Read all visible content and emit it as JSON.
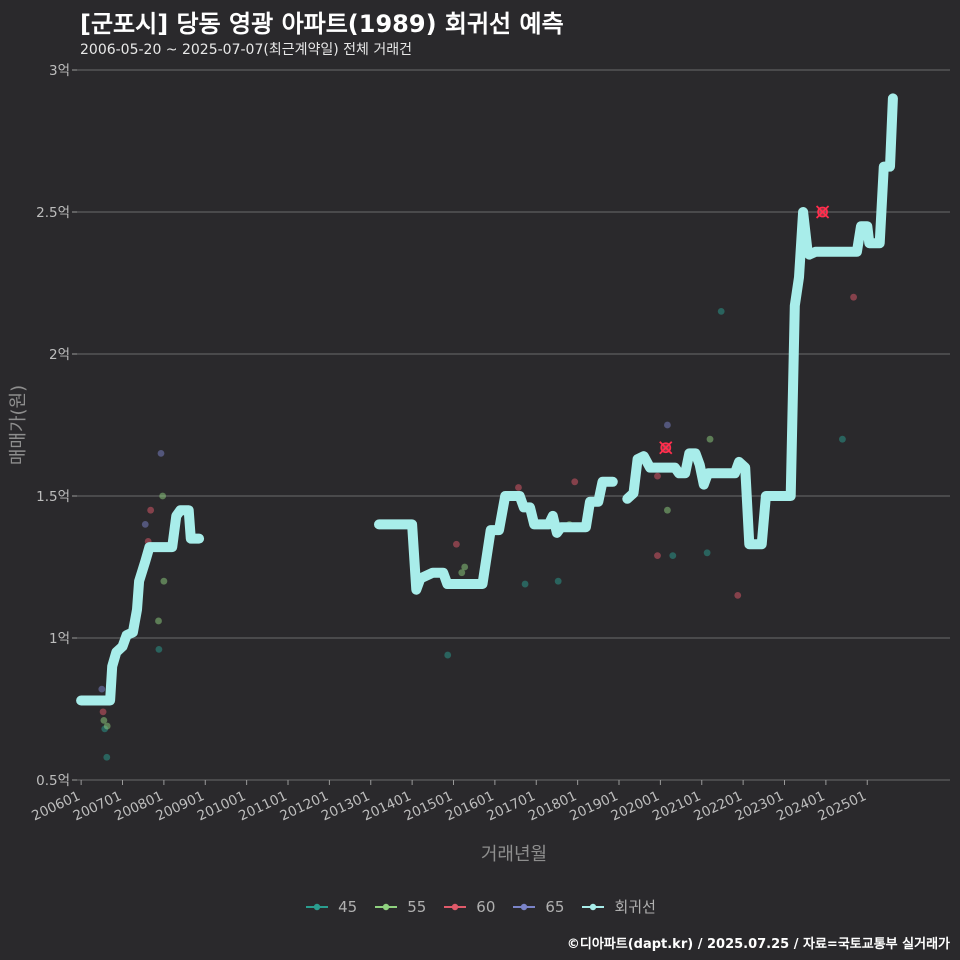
{
  "chart_data": {
    "type": "line",
    "title": "[군포시] 당동 영광 아파트(1989) 회귀선 예측",
    "subtitle": "2006-05-20 ~ 2025-07-07(최근계약일) 전체 거래건",
    "xlabel": "거래년월",
    "ylabel": "매매가(원)",
    "xlim": [
      2005.9,
      2027.0
    ],
    "ylim": [
      0.5,
      3.0
    ],
    "y_ticks": [
      {
        "value": 0.5,
        "label": "0.5억"
      },
      {
        "value": 1.0,
        "label": "1억"
      },
      {
        "value": 1.5,
        "label": "1.5억"
      },
      {
        "value": 2.0,
        "label": "2억"
      },
      {
        "value": 2.5,
        "label": "2.5억"
      },
      {
        "value": 3.0,
        "label": "3억"
      }
    ],
    "x_ticks": [
      {
        "value": 2006.0,
        "label": "200601"
      },
      {
        "value": 2007.0,
        "label": "200701"
      },
      {
        "value": 2008.0,
        "label": "200801"
      },
      {
        "value": 2009.0,
        "label": "200901"
      },
      {
        "value": 2010.0,
        "label": "201001"
      },
      {
        "value": 2011.0,
        "label": "201101"
      },
      {
        "value": 2012.0,
        "label": "201201"
      },
      {
        "value": 2013.0,
        "label": "201301"
      },
      {
        "value": 2014.0,
        "label": "201401"
      },
      {
        "value": 2015.0,
        "label": "201501"
      },
      {
        "value": 2016.0,
        "label": "201601"
      },
      {
        "value": 2017.0,
        "label": "201701"
      },
      {
        "value": 2018.0,
        "label": "201801"
      },
      {
        "value": 2019.0,
        "label": "201901"
      },
      {
        "value": 2020.0,
        "label": "202001"
      },
      {
        "value": 2021.0,
        "label": "202101"
      },
      {
        "value": 2022.0,
        "label": "202201"
      },
      {
        "value": 2023.0,
        "label": "202301"
      },
      {
        "value": 2024.0,
        "label": "202401"
      },
      {
        "value": 2025.0,
        "label": "202501"
      }
    ],
    "legend_position": "bottom",
    "series": [
      {
        "name": "45",
        "color": "#2a9d8f",
        "kind": "scatter",
        "points": [
          [
            2006.57,
            0.68
          ],
          [
            2006.62,
            0.58
          ],
          [
            2007.88,
            0.96
          ],
          [
            2014.86,
            0.94
          ],
          [
            2016.73,
            1.19
          ],
          [
            2017.53,
            1.2
          ],
          [
            2020.3,
            1.29
          ],
          [
            2021.13,
            1.3
          ],
          [
            2021.47,
            2.15
          ],
          [
            2024.4,
            1.7
          ]
        ]
      },
      {
        "name": "55",
        "color": "#8fd17f",
        "kind": "scatter",
        "points": [
          [
            2006.55,
            0.71
          ],
          [
            2006.63,
            0.69
          ],
          [
            2007.87,
            1.06
          ],
          [
            2007.97,
            1.5
          ],
          [
            2008.0,
            1.2
          ],
          [
            2015.2,
            1.23
          ],
          [
            2015.27,
            1.25
          ],
          [
            2017.8,
            1.4
          ],
          [
            2020.17,
            1.45
          ],
          [
            2021.2,
            1.7
          ]
        ]
      },
      {
        "name": "60",
        "color": "#e05a6a",
        "kind": "scatter",
        "points": [
          [
            2006.53,
            0.74
          ],
          [
            2007.62,
            1.34
          ],
          [
            2007.68,
            1.45
          ],
          [
            2008.03,
            1.32
          ],
          [
            2015.07,
            1.33
          ],
          [
            2016.57,
            1.53
          ],
          [
            2017.93,
            1.55
          ],
          [
            2019.93,
            1.29
          ],
          [
            2019.93,
            1.57
          ],
          [
            2020.13,
            1.67
          ],
          [
            2021.87,
            1.15
          ],
          [
            2023.92,
            2.5
          ],
          [
            2024.67,
            2.2
          ]
        ]
      },
      {
        "name": "65",
        "color": "#7b84c9",
        "kind": "scatter",
        "points": [
          [
            2006.5,
            0.82
          ],
          [
            2007.55,
            1.4
          ],
          [
            2007.93,
            1.65
          ],
          [
            2020.17,
            1.75
          ]
        ]
      },
      {
        "name": "회귀선",
        "color": "#a8edea",
        "kind": "line",
        "segments": [
          [
            [
              2006.0,
              0.78
            ],
            [
              2006.7,
              0.78
            ],
            [
              2006.75,
              0.9
            ],
            [
              2006.85,
              0.95
            ],
            [
              2007.0,
              0.97
            ],
            [
              2007.1,
              1.01
            ],
            [
              2007.25,
              1.02
            ],
            [
              2007.35,
              1.1
            ],
            [
              2007.4,
              1.2
            ],
            [
              2007.55,
              1.27
            ],
            [
              2007.65,
              1.32
            ],
            [
              2008.2,
              1.32
            ],
            [
              2008.3,
              1.43
            ],
            [
              2008.4,
              1.45
            ],
            [
              2008.6,
              1.45
            ],
            [
              2008.65,
              1.35
            ],
            [
              2008.85,
              1.35
            ]
          ],
          [
            [
              2013.2,
              1.4
            ],
            [
              2014.0,
              1.4
            ],
            [
              2014.1,
              1.17
            ],
            [
              2014.2,
              1.21
            ],
            [
              2014.5,
              1.23
            ],
            [
              2014.75,
              1.23
            ],
            [
              2014.85,
              1.19
            ],
            [
              2015.7,
              1.19
            ],
            [
              2015.9,
              1.38
            ],
            [
              2016.1,
              1.38
            ],
            [
              2016.25,
              1.5
            ],
            [
              2016.6,
              1.5
            ],
            [
              2016.7,
              1.46
            ],
            [
              2016.85,
              1.46
            ],
            [
              2016.95,
              1.4
            ],
            [
              2017.3,
              1.4
            ],
            [
              2017.4,
              1.43
            ],
            [
              2017.5,
              1.37
            ],
            [
              2017.6,
              1.39
            ],
            [
              2018.2,
              1.39
            ],
            [
              2018.3,
              1.48
            ],
            [
              2018.5,
              1.48
            ],
            [
              2018.6,
              1.55
            ],
            [
              2018.85,
              1.55
            ]
          ],
          [
            [
              2019.2,
              1.49
            ],
            [
              2019.35,
              1.51
            ],
            [
              2019.45,
              1.63
            ],
            [
              2019.6,
              1.64
            ],
            [
              2019.75,
              1.6
            ],
            [
              2020.35,
              1.6
            ],
            [
              2020.45,
              1.58
            ],
            [
              2020.6,
              1.58
            ],
            [
              2020.7,
              1.65
            ],
            [
              2020.85,
              1.65
            ],
            [
              2020.95,
              1.61
            ],
            [
              2021.05,
              1.54
            ],
            [
              2021.15,
              1.58
            ],
            [
              2021.8,
              1.58
            ],
            [
              2021.9,
              1.62
            ],
            [
              2022.05,
              1.6
            ],
            [
              2022.15,
              1.33
            ],
            [
              2022.45,
              1.33
            ],
            [
              2022.55,
              1.5
            ],
            [
              2023.15,
              1.5
            ],
            [
              2023.25,
              2.17
            ],
            [
              2023.35,
              2.27
            ],
            [
              2023.45,
              2.5
            ],
            [
              2023.55,
              2.37
            ],
            [
              2023.6,
              2.35
            ],
            [
              2023.75,
              2.36
            ],
            [
              2024.75,
              2.36
            ],
            [
              2024.85,
              2.45
            ],
            [
              2025.0,
              2.45
            ],
            [
              2025.05,
              2.39
            ],
            [
              2025.3,
              2.39
            ],
            [
              2025.4,
              2.66
            ],
            [
              2025.55,
              2.66
            ],
            [
              2025.62,
              2.9
            ]
          ]
        ]
      }
    ],
    "highlight_points": [
      [
        2020.13,
        1.67
      ],
      [
        2023.92,
        2.5
      ]
    ]
  },
  "source_text": "©디아파트(dapt.kr) / 2025.07.25 / 자료=국토교통부 실거래가"
}
